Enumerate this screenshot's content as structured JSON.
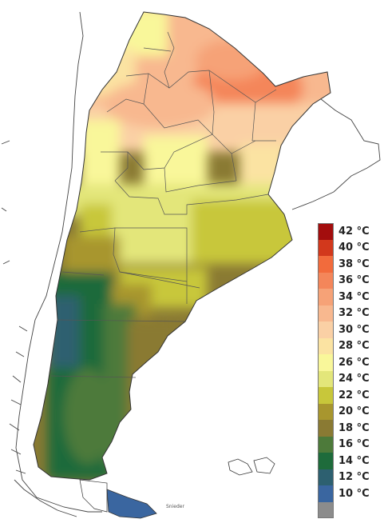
{
  "legend": {
    "items": [
      {
        "label": "42 °C",
        "color": "#a30d0d"
      },
      {
        "label": "40 °C",
        "color": "#d2381c"
      },
      {
        "label": "38 °C",
        "color": "#f26b3c"
      },
      {
        "label": "36 °C",
        "color": "#f4865a"
      },
      {
        "label": "34 °C",
        "color": "#f6a277"
      },
      {
        "label": "32 °C",
        "color": "#f8b88f"
      },
      {
        "label": "30 °C",
        "color": "#fad0a5"
      },
      {
        "label": "28 °C",
        "color": "#fbe3a2"
      },
      {
        "label": "26 °C",
        "color": "#f9f79a"
      },
      {
        "label": "24 °C",
        "color": "#e3e67a"
      },
      {
        "label": "22 °C",
        "color": "#c8c73a"
      },
      {
        "label": "20 °C",
        "color": "#a8962e"
      },
      {
        "label": "18 °C",
        "color": "#8a7a33"
      },
      {
        "label": "16 °C",
        "color": "#4d7a3a"
      },
      {
        "label": "14 °C",
        "color": "#1e6b3b"
      },
      {
        "label": "12 °C",
        "color": "#2d6070"
      },
      {
        "label": "10 °C",
        "color": "#3a66a0"
      },
      {
        "label": "",
        "color": "#8c8c8c"
      }
    ]
  },
  "credit": "Snieder"
}
